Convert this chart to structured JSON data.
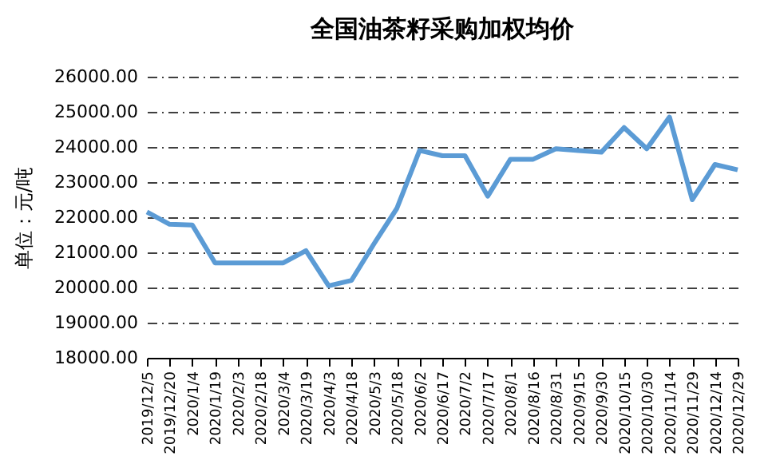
{
  "chart_data": {
    "type": "line",
    "title": "全国油茶籽采购加权均价",
    "ylabel": "单位：元/吨",
    "categories": [
      "2019/12/5",
      "2019/12/20",
      "2020/1/4",
      "2020/1/19",
      "2020/2/3",
      "2020/2/18",
      "2020/3/4",
      "2020/3/19",
      "2020/4/3",
      "2020/4/18",
      "2020/5/3",
      "2020/5/18",
      "2020/6/2",
      "2020/6/17",
      "2020/7/2",
      "2020/7/17",
      "2020/8/1",
      "2020/8/16",
      "2020/8/31",
      "2020/9/15",
      "2020/9/30",
      "2020/10/15",
      "2020/10/30",
      "2020/11/14",
      "2020/11/29",
      "2020/12/14",
      "2020/12/29"
    ],
    "series": [
      {
        "color": "#5b9bd5",
        "values": [
          22150,
          21800,
          21780,
          20700,
          20700,
          20700,
          20700,
          21050,
          20050,
          20200,
          21250,
          22250,
          23900,
          23750,
          23750,
          22600,
          23650,
          23650,
          23950,
          23900,
          23850,
          24550,
          23950,
          24850,
          22500,
          23500,
          23350
        ]
      }
    ],
    "ylim": [
      18000,
      26000
    ],
    "yticks": [
      {
        "value": 18000,
        "label": "18000.00"
      },
      {
        "value": 19000,
        "label": "19000.00"
      },
      {
        "value": 20000,
        "label": "20000.00"
      },
      {
        "value": 21000,
        "label": "21000.00"
      },
      {
        "value": 22000,
        "label": "22000.00"
      },
      {
        "value": 23000,
        "label": "23000.00"
      },
      {
        "value": 24000,
        "label": "24000.00"
      },
      {
        "value": 25000,
        "label": "25000.00"
      },
      {
        "value": 26000,
        "label": "26000.00"
      }
    ],
    "grid": "y",
    "marker": "none",
    "line_style": "solid"
  }
}
